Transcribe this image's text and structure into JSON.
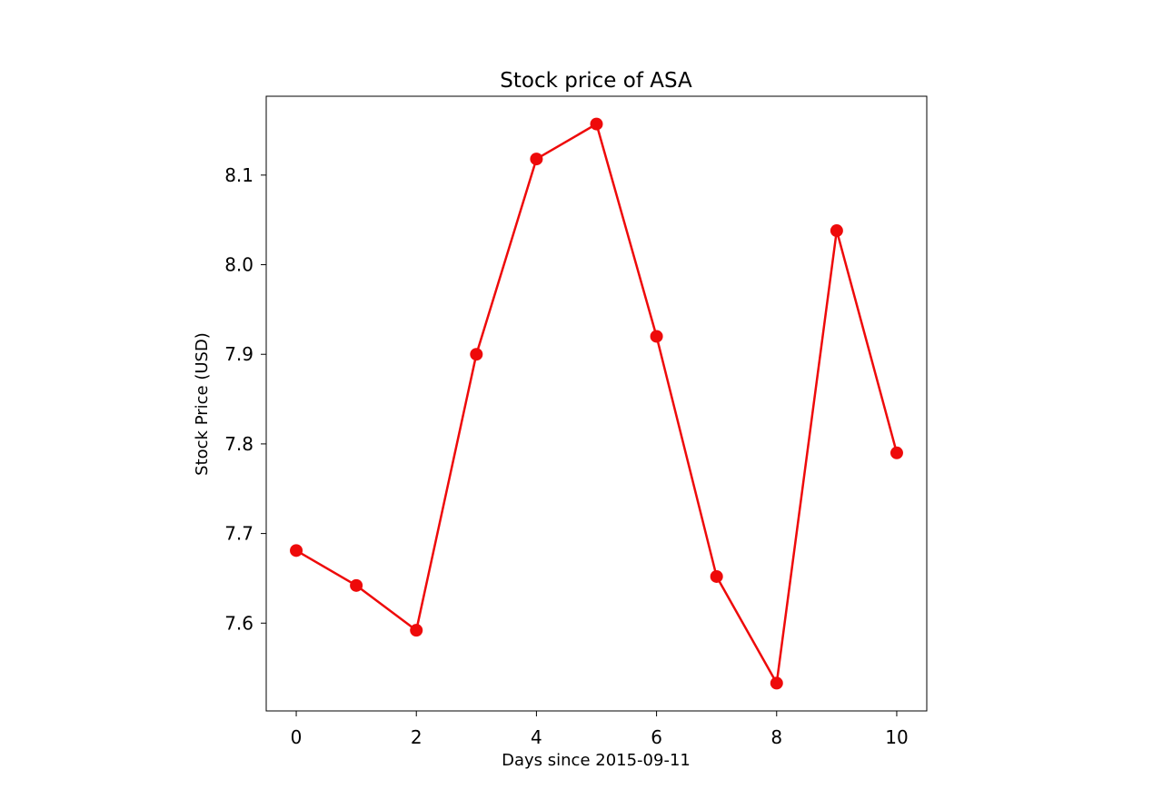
{
  "chart_data": {
    "type": "line",
    "title": "Stock price of ASA",
    "xlabel": "Days since 2015-09-11",
    "ylabel": "Stock Price (USD)",
    "x": [
      0,
      1,
      2,
      3,
      4,
      5,
      6,
      7,
      8,
      9,
      10
    ],
    "series": [
      {
        "values": [
          7.681,
          7.642,
          7.592,
          7.9,
          8.118,
          8.157,
          7.92,
          7.652,
          7.533,
          8.038,
          7.79
        ]
      }
    ],
    "xlim": [
      -0.5,
      10.5
    ],
    "ylim": [
      7.502,
      8.188
    ],
    "xticks": [
      0,
      2,
      4,
      6,
      8,
      10
    ],
    "yticks": [
      7.6,
      7.7,
      7.8,
      7.9,
      8.0,
      8.1
    ],
    "xtick_labels": [
      "0",
      "2",
      "4",
      "6",
      "8",
      "10"
    ],
    "ytick_labels": [
      "7.6",
      "7.7",
      "7.8",
      "7.9",
      "8.0",
      "8.1"
    ],
    "line_color": "#ee0a0a",
    "marker": "circle",
    "grid": false,
    "legend": "none"
  }
}
